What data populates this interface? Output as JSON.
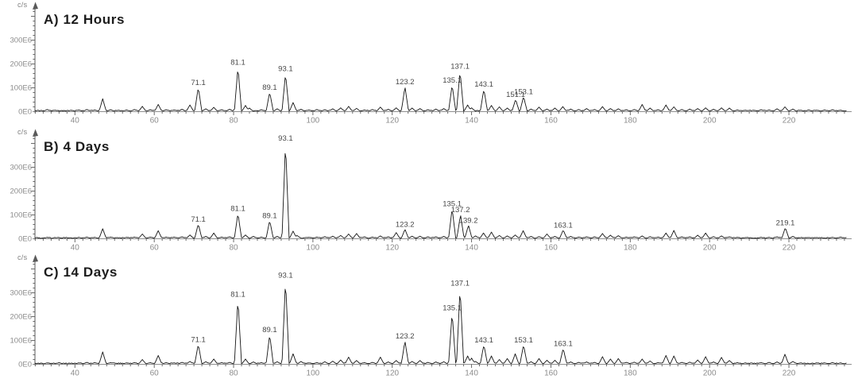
{
  "figure": {
    "description": "Three stacked mass spectra panels",
    "trace_color": "#151515",
    "axis_color": "#5a5a5a",
    "tick_label_color": "#8c8c8c",
    "peak_label_color": "#474747"
  },
  "chart_data": [
    {
      "type": "line",
      "panel_id": "A",
      "title": "A) 12 Hours",
      "ylabel": "c/s",
      "xlim": [
        30,
        235
      ],
      "ylim_E6": [
        0,
        440
      ],
      "grid": false,
      "xticks": [
        40,
        60,
        80,
        100,
        120,
        140,
        160,
        180,
        200,
        220
      ],
      "yticks": [
        {
          "value_E6": 0,
          "label": "0E0"
        },
        {
          "value_E6": 100,
          "label": "100E6"
        },
        {
          "value_E6": 200,
          "label": "200E6"
        },
        {
          "value_E6": 300,
          "label": "300E6"
        }
      ],
      "peaks_format": [
        "mz",
        "intensity_E6",
        "label_optional"
      ],
      "peaks": [
        [
          33,
          7
        ],
        [
          35,
          4
        ],
        [
          39,
          4
        ],
        [
          41,
          5
        ],
        [
          43,
          7
        ],
        [
          45,
          5
        ],
        [
          47,
          52
        ],
        [
          49,
          6
        ],
        [
          51,
          4
        ],
        [
          53,
          5
        ],
        [
          55,
          7
        ],
        [
          57,
          20
        ],
        [
          59,
          6
        ],
        [
          61,
          28
        ],
        [
          63,
          6
        ],
        [
          65,
          5
        ],
        [
          67,
          8
        ],
        [
          69,
          26
        ],
        [
          71.1,
          100,
          "71.1"
        ],
        [
          73,
          10
        ],
        [
          75,
          16
        ],
        [
          77,
          6
        ],
        [
          79,
          8
        ],
        [
          81.1,
          185,
          "81.1"
        ],
        [
          83,
          24
        ],
        [
          84,
          13
        ],
        [
          87,
          6
        ],
        [
          89.1,
          80,
          "89.1"
        ],
        [
          91,
          10
        ],
        [
          93.1,
          158,
          "93.1"
        ],
        [
          95,
          36
        ],
        [
          97,
          8
        ],
        [
          99,
          5
        ],
        [
          101,
          7
        ],
        [
          103,
          6
        ],
        [
          105,
          10
        ],
        [
          107,
          14
        ],
        [
          109,
          20
        ],
        [
          111,
          12
        ],
        [
          113,
          5
        ],
        [
          115,
          7
        ],
        [
          117,
          17
        ],
        [
          119,
          8
        ],
        [
          121,
          14
        ],
        [
          123.2,
          103,
          "123.2"
        ],
        [
          125,
          13
        ],
        [
          127,
          11
        ],
        [
          129,
          6
        ],
        [
          131,
          9
        ],
        [
          133,
          11
        ],
        [
          135.1,
          110,
          "135.1"
        ],
        [
          137.1,
          168,
          "137.1"
        ],
        [
          139,
          26
        ],
        [
          140,
          14
        ],
        [
          143.1,
          93,
          "143.1"
        ],
        [
          145,
          24
        ],
        [
          147,
          18
        ],
        [
          149,
          13
        ],
        [
          151.1,
          50,
          "151.1"
        ],
        [
          153.1,
          62,
          "153.1"
        ],
        [
          155,
          9
        ],
        [
          157,
          17
        ],
        [
          159,
          9
        ],
        [
          161,
          13
        ],
        [
          163,
          19
        ],
        [
          165,
          9
        ],
        [
          167,
          7
        ],
        [
          169,
          11
        ],
        [
          171,
          7
        ],
        [
          173,
          19
        ],
        [
          175,
          11
        ],
        [
          177,
          10
        ],
        [
          179,
          6
        ],
        [
          181,
          7
        ],
        [
          183,
          28
        ],
        [
          185,
          13
        ],
        [
          187,
          6
        ],
        [
          189,
          26
        ],
        [
          191,
          18
        ],
        [
          193,
          7
        ],
        [
          195,
          9
        ],
        [
          197,
          11
        ],
        [
          199,
          14
        ],
        [
          201,
          8
        ],
        [
          203,
          14
        ],
        [
          205,
          13
        ],
        [
          207,
          5
        ],
        [
          209,
          4
        ],
        [
          211,
          4
        ],
        [
          213,
          6
        ],
        [
          215,
          5
        ],
        [
          217,
          10
        ],
        [
          219,
          18
        ],
        [
          221,
          9
        ],
        [
          223,
          4
        ],
        [
          225,
          5
        ],
        [
          227,
          4
        ],
        [
          229,
          5
        ],
        [
          231,
          6
        ],
        [
          233,
          4
        ]
      ]
    },
    {
      "type": "line",
      "panel_id": "B",
      "title": "B) 4 Days",
      "ylabel": "c/s",
      "xlim": [
        30,
        235
      ],
      "ylim_E6": [
        0,
        440
      ],
      "grid": false,
      "xticks": [
        40,
        60,
        80,
        100,
        120,
        140,
        160,
        180,
        200,
        220
      ],
      "yticks": [
        {
          "value_E6": 0,
          "label": "0E0"
        },
        {
          "value_E6": 100,
          "label": "100E6"
        },
        {
          "value_E6": 200,
          "label": "200E6"
        },
        {
          "value_E6": 300,
          "label": "300E6"
        }
      ],
      "peaks_format": [
        "mz",
        "intensity_E6",
        "label_optional"
      ],
      "peaks": [
        [
          33,
          4
        ],
        [
          36,
          3
        ],
        [
          41,
          4
        ],
        [
          43,
          5
        ],
        [
          45,
          4
        ],
        [
          47,
          40
        ],
        [
          49,
          5
        ],
        [
          53,
          4
        ],
        [
          55,
          5
        ],
        [
          57,
          18
        ],
        [
          59,
          5
        ],
        [
          61,
          32
        ],
        [
          63,
          5
        ],
        [
          65,
          5
        ],
        [
          67,
          6
        ],
        [
          69,
          14
        ],
        [
          71.1,
          60,
          "71.1"
        ],
        [
          73,
          8
        ],
        [
          75,
          22
        ],
        [
          77,
          5
        ],
        [
          79,
          6
        ],
        [
          81.1,
          105,
          "81.1"
        ],
        [
          83,
          14
        ],
        [
          85,
          8
        ],
        [
          87,
          5
        ],
        [
          89.1,
          75,
          "89.1"
        ],
        [
          91,
          8
        ],
        [
          93.1,
          400,
          "93.1"
        ],
        [
          95,
          30
        ],
        [
          96,
          12
        ],
        [
          99,
          4
        ],
        [
          101,
          5
        ],
        [
          103,
          7
        ],
        [
          105,
          9
        ],
        [
          107,
          12
        ],
        [
          109,
          18
        ],
        [
          111,
          20
        ],
        [
          113,
          6
        ],
        [
          115,
          5
        ],
        [
          117,
          10
        ],
        [
          119,
          6
        ],
        [
          121,
          24
        ],
        [
          123.2,
          38,
          "123.2"
        ],
        [
          125,
          9
        ],
        [
          127,
          9
        ],
        [
          129,
          6
        ],
        [
          131,
          6
        ],
        [
          133,
          8
        ],
        [
          135.1,
          125,
          "135.1"
        ],
        [
          137.2,
          100,
          "137.2"
        ],
        [
          139.2,
          55,
          "139.2"
        ],
        [
          141,
          10
        ],
        [
          143,
          22
        ],
        [
          145,
          26
        ],
        [
          147,
          12
        ],
        [
          149,
          10
        ],
        [
          151,
          14
        ],
        [
          153,
          32
        ],
        [
          155,
          8
        ],
        [
          157,
          7
        ],
        [
          159,
          18
        ],
        [
          161,
          8
        ],
        [
          163.1,
          35,
          "163.1"
        ],
        [
          165,
          8
        ],
        [
          167,
          5
        ],
        [
          169,
          6
        ],
        [
          171,
          6
        ],
        [
          173,
          20
        ],
        [
          175,
          13
        ],
        [
          177,
          11
        ],
        [
          179,
          5
        ],
        [
          181,
          6
        ],
        [
          183,
          10
        ],
        [
          185,
          7
        ],
        [
          187,
          5
        ],
        [
          189,
          22
        ],
        [
          191,
          33
        ],
        [
          193,
          6
        ],
        [
          195,
          6
        ],
        [
          197,
          13
        ],
        [
          199,
          22
        ],
        [
          201,
          7
        ],
        [
          203,
          10
        ],
        [
          205,
          6
        ],
        [
          207,
          4
        ],
        [
          209,
          3
        ],
        [
          213,
          4
        ],
        [
          215,
          4
        ],
        [
          217,
          6
        ],
        [
          219.1,
          45,
          "219.1"
        ],
        [
          221,
          8
        ],
        [
          223,
          3
        ],
        [
          227,
          3
        ],
        [
          231,
          4
        ],
        [
          233,
          5
        ]
      ]
    },
    {
      "type": "line",
      "panel_id": "C",
      "title": "C) 14 Days",
      "ylabel": "c/s",
      "xlim": [
        30,
        235
      ],
      "ylim_E6": [
        0,
        440
      ],
      "grid": false,
      "xticks": [
        40,
        60,
        80,
        100,
        120,
        140,
        160,
        180,
        200,
        220
      ],
      "yticks": [
        {
          "value_E6": 0,
          "label": "0E0"
        },
        {
          "value_E6": 100,
          "label": "100E6"
        },
        {
          "value_E6": 200,
          "label": "200E6"
        },
        {
          "value_E6": 300,
          "label": "300E6"
        }
      ],
      "peaks_format": [
        "mz",
        "intensity_E6",
        "label_optional"
      ],
      "peaks": [
        [
          33,
          4
        ],
        [
          36,
          5
        ],
        [
          41,
          4
        ],
        [
          43,
          6
        ],
        [
          45,
          5
        ],
        [
          47,
          50
        ],
        [
          49,
          5
        ],
        [
          53,
          4
        ],
        [
          55,
          5
        ],
        [
          57,
          18
        ],
        [
          59,
          5
        ],
        [
          61,
          35
        ],
        [
          63,
          5
        ],
        [
          65,
          4
        ],
        [
          67,
          6
        ],
        [
          69,
          10
        ],
        [
          71.1,
          82,
          "71.1"
        ],
        [
          73,
          9
        ],
        [
          75,
          20
        ],
        [
          77,
          5
        ],
        [
          79,
          6
        ],
        [
          81.1,
          272,
          "81.1"
        ],
        [
          83,
          20
        ],
        [
          85,
          8
        ],
        [
          87,
          5
        ],
        [
          89.1,
          123,
          "89.1"
        ],
        [
          91,
          9
        ],
        [
          93.1,
          352,
          "93.1"
        ],
        [
          95,
          42
        ],
        [
          97,
          10
        ],
        [
          99,
          4
        ],
        [
          101,
          5
        ],
        [
          103,
          9
        ],
        [
          105,
          11
        ],
        [
          107,
          16
        ],
        [
          109,
          28
        ],
        [
          111,
          14
        ],
        [
          113,
          5
        ],
        [
          115,
          6
        ],
        [
          117,
          28
        ],
        [
          119,
          8
        ],
        [
          121,
          14
        ],
        [
          123.2,
          96,
          "123.2"
        ],
        [
          125,
          10
        ],
        [
          127,
          14
        ],
        [
          129,
          6
        ],
        [
          131,
          8
        ],
        [
          133,
          9
        ],
        [
          135.1,
          215,
          "135.1"
        ],
        [
          137.1,
          318,
          "137.1"
        ],
        [
          139,
          33
        ],
        [
          140,
          24
        ],
        [
          141,
          10
        ],
        [
          143.1,
          80,
          "143.1"
        ],
        [
          145,
          33
        ],
        [
          147,
          18
        ],
        [
          149,
          22
        ],
        [
          151,
          42
        ],
        [
          153.1,
          80,
          "153.1"
        ],
        [
          155,
          9
        ],
        [
          157,
          22
        ],
        [
          159,
          15
        ],
        [
          161,
          15
        ],
        [
          163.1,
          65,
          "163.1"
        ],
        [
          165,
          8
        ],
        [
          167,
          6
        ],
        [
          169,
          8
        ],
        [
          171,
          6
        ],
        [
          173,
          30
        ],
        [
          175,
          20
        ],
        [
          177,
          22
        ],
        [
          179,
          6
        ],
        [
          181,
          7
        ],
        [
          183,
          20
        ],
        [
          185,
          12
        ],
        [
          187,
          5
        ],
        [
          189,
          35
        ],
        [
          191,
          33
        ],
        [
          193,
          6
        ],
        [
          195,
          7
        ],
        [
          197,
          16
        ],
        [
          199,
          30
        ],
        [
          201,
          8
        ],
        [
          203,
          27
        ],
        [
          205,
          14
        ],
        [
          207,
          5
        ],
        [
          209,
          4
        ],
        [
          213,
          5
        ],
        [
          215,
          6
        ],
        [
          217,
          8
        ],
        [
          219,
          40
        ],
        [
          221,
          10
        ],
        [
          223,
          4
        ],
        [
          227,
          4
        ],
        [
          229,
          4
        ],
        [
          231,
          5
        ],
        [
          233,
          4
        ]
      ]
    }
  ]
}
